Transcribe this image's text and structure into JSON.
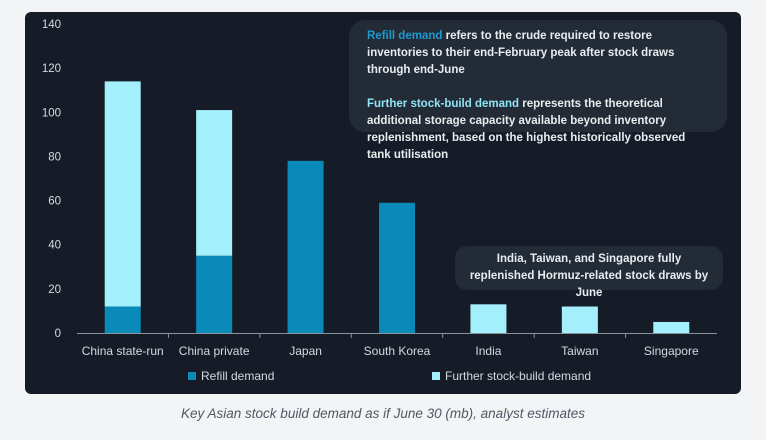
{
  "chart_data": {
    "type": "bar",
    "stacked": true,
    "categories": [
      "China state-run",
      "China private",
      "Japan",
      "South Korea",
      "India",
      "Taiwan",
      "Singapore"
    ],
    "series": [
      {
        "name": "Refill demand",
        "color": "#0a8ab8",
        "values": [
          12,
          35,
          78,
          59,
          0,
          0,
          0
        ]
      },
      {
        "name": "Further stock-build demand",
        "color": "#a3f0fc",
        "values": [
          102,
          66,
          0,
          0,
          13,
          12,
          5
        ]
      }
    ],
    "ylim": [
      0,
      140
    ],
    "yticks": [
      "0",
      "20",
      "40",
      "60",
      "80",
      "100",
      "120",
      "140"
    ],
    "grid": false,
    "legend": "bottom",
    "xlabel": "",
    "ylabel": ""
  },
  "notes": {
    "definitions": {
      "refill_term": "Refill demand",
      "refill_text": " refers to the crude required to restore inventories to their end-February peak after stock draws through end-June",
      "further_term": "Further stock-build demand",
      "further_text": " represents the theoretical additional storage capacity available beyond inventory replenishment, based on the highest historically observed tank utilisation"
    },
    "replenished": "India, Taiwan, and Singapore fully replenished Hormuz-related stock draws by June"
  },
  "caption": "Key Asian stock build demand as if June 30 (mb), analyst estimates",
  "colors": {
    "panel_bg": "#161c27",
    "note_bg": "#232b36",
    "axis": "#8a929c",
    "text": "#d5d9de"
  }
}
